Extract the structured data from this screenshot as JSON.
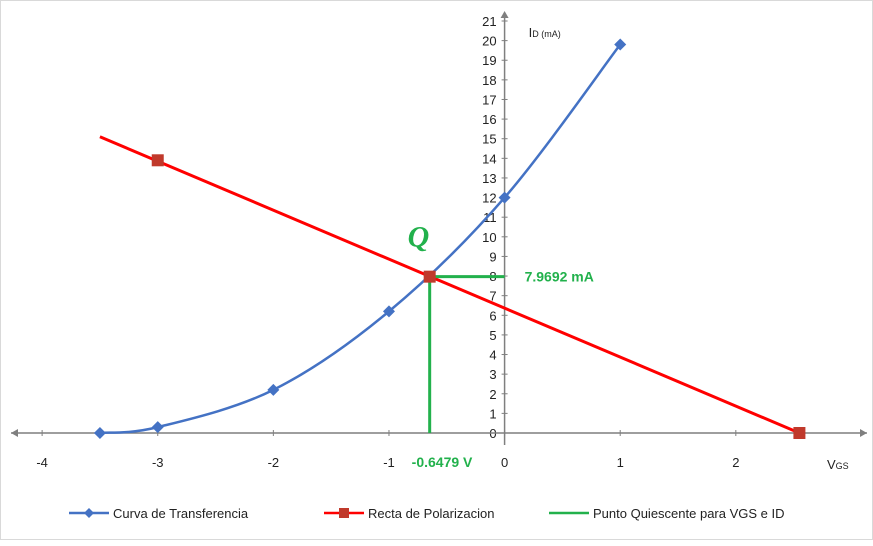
{
  "chart_data": {
    "type": "line",
    "xlim": [
      -4.2,
      3.1
    ],
    "ylim": [
      0,
      21
    ],
    "x_ticks": [
      -4,
      -3,
      -2,
      -1,
      0,
      1,
      2
    ],
    "y_ticks": [
      0,
      1,
      2,
      3,
      4,
      5,
      6,
      7,
      8,
      9,
      10,
      11,
      12,
      13,
      14,
      15,
      16,
      17,
      18,
      19,
      20,
      21
    ],
    "y_axis_at_x": 0,
    "y_label_main": "I",
    "y_label_sub": "D (mA)",
    "x_label_main": "V",
    "x_label_sub": "GS",
    "series": [
      {
        "name": "Curva de Transferencia",
        "color": "#4472c4",
        "marker": "diamond",
        "smooth": true,
        "x": [
          -3.5,
          -3,
          -2,
          -1,
          0,
          1
        ],
        "y": [
          0.0,
          0.3,
          2.2,
          6.2,
          12.0,
          19.8
        ]
      },
      {
        "name": "Recta  de Polarizacion",
        "color": "#ff0000",
        "marker": "square",
        "marker_color": "#c0392b",
        "line_x": [
          -3.5,
          2.55
        ],
        "line_y": [
          15.1,
          0.0
        ],
        "marker_x": [
          -3,
          2.55
        ],
        "marker_y": [
          13.9,
          0.0
        ]
      },
      {
        "name": "Punto Quiescente para VGS e ID",
        "color": "#22b14c",
        "segments": [
          {
            "x": [
              -0.6479,
              -0.6479
            ],
            "y": [
              0,
              7.9692
            ]
          },
          {
            "x": [
              -0.6479,
              0
            ],
            "y": [
              7.9692,
              7.9692
            ]
          }
        ]
      }
    ],
    "q_point": {
      "x": -0.6479,
      "y": 7.9692,
      "label": "Q"
    },
    "annotations": {
      "id_value": "7.9692 mA",
      "vgs_value": "-0.6479 V"
    },
    "legend_position": "bottom"
  }
}
